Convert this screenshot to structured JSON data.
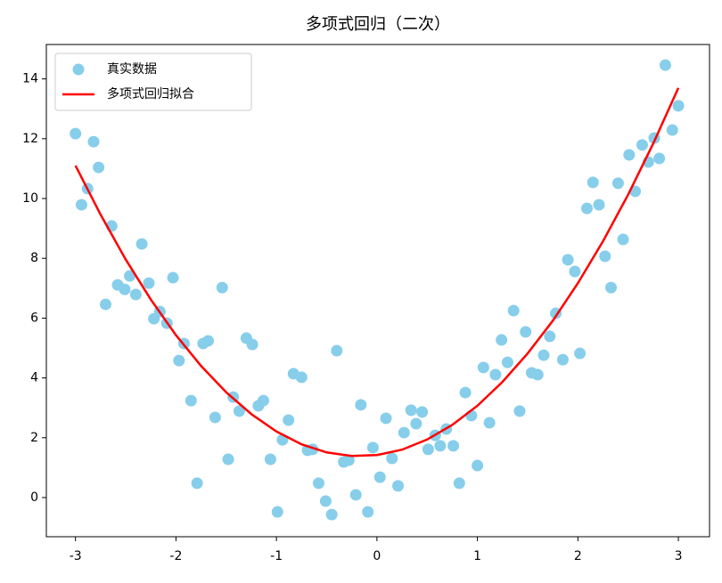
{
  "chart_data": {
    "type": "scatter",
    "title": "多项式回归（二次）",
    "xlim": [
      -3.29,
      3.31
    ],
    "ylim": [
      -1.31,
      15.15
    ],
    "xticks": [
      -3,
      -2,
      -1,
      0,
      1,
      2,
      3
    ],
    "yticks": [
      0,
      2,
      4,
      6,
      8,
      10,
      12,
      14
    ],
    "legend": "upper left",
    "series": [
      {
        "name": "真实数据",
        "type": "scatter",
        "color": "#87ceeb",
        "x": [
          -3.0,
          -2.94,
          -2.88,
          -2.82,
          -2.77,
          -2.7,
          -2.64,
          -2.58,
          -2.51,
          -2.46,
          -2.4,
          -2.34,
          -2.27,
          -2.22,
          -2.16,
          -2.09,
          -2.03,
          -1.97,
          -1.92,
          -1.85,
          -1.79,
          -1.73,
          -1.68,
          -1.61,
          -1.54,
          -1.48,
          -1.43,
          -1.37,
          -1.3,
          -1.24,
          -1.18,
          -1.13,
          -1.06,
          -0.99,
          -0.94,
          -0.88,
          -0.83,
          -0.75,
          -0.69,
          -0.64,
          -0.58,
          -0.51,
          -0.45,
          -0.4,
          -0.33,
          -0.28,
          -0.21,
          -0.16,
          -0.09,
          -0.04,
          0.03,
          0.09,
          0.15,
          0.21,
          0.27,
          0.34,
          0.39,
          0.45,
          0.51,
          0.58,
          0.63,
          0.69,
          0.76,
          0.82,
          0.88,
          0.94,
          1.0,
          1.06,
          1.12,
          1.18,
          1.24,
          1.3,
          1.36,
          1.42,
          1.48,
          1.54,
          1.6,
          1.66,
          1.72,
          1.78,
          1.85,
          1.9,
          1.97,
          2.02,
          2.09,
          2.15,
          2.21,
          2.27,
          2.33,
          2.4,
          2.45,
          2.51,
          2.57,
          2.64,
          2.7,
          2.76,
          2.81,
          2.87,
          2.94,
          3.0
        ],
        "values": [
          12.17,
          9.79,
          10.33,
          11.9,
          11.04,
          6.46,
          9.08,
          7.11,
          6.96,
          7.41,
          6.79,
          8.48,
          7.17,
          5.98,
          6.22,
          5.83,
          7.35,
          4.58,
          5.15,
          3.24,
          0.48,
          5.15,
          5.24,
          2.68,
          7.02,
          1.28,
          3.36,
          2.89,
          5.33,
          5.12,
          3.07,
          3.24,
          1.28,
          -0.48,
          1.93,
          2.59,
          4.14,
          4.02,
          1.58,
          1.61,
          0.48,
          -0.12,
          -0.57,
          4.91,
          1.19,
          1.25,
          0.09,
          3.1,
          -0.48,
          1.67,
          0.68,
          2.65,
          1.31,
          0.39,
          2.17,
          2.92,
          2.47,
          2.86,
          1.61,
          2.08,
          1.73,
          2.29,
          1.73,
          0.48,
          3.51,
          2.74,
          1.07,
          4.35,
          2.5,
          4.11,
          5.27,
          4.52,
          6.25,
          2.89,
          5.54,
          4.17,
          4.11,
          4.76,
          5.39,
          6.16,
          4.61,
          7.95,
          7.56,
          4.82,
          9.67,
          10.54,
          9.79,
          8.07,
          7.02,
          10.51,
          8.63,
          11.46,
          10.24,
          11.79,
          11.22,
          12.02,
          11.34,
          14.46,
          12.29,
          13.1
        ]
      },
      {
        "name": "多项式回归拟合",
        "type": "line",
        "color": "#ff0000",
        "x": [
          -3,
          -2.75,
          -2.5,
          -2.25,
          -2,
          -1.75,
          -1.5,
          -1.25,
          -1,
          -0.75,
          -0.5,
          -0.25,
          0,
          0.25,
          0.5,
          0.75,
          1,
          1.25,
          1.5,
          1.75,
          2,
          2.25,
          2.5,
          2.75,
          3
        ],
        "values": [
          11.1,
          9.46,
          7.96,
          6.62,
          5.43,
          4.4,
          3.52,
          2.79,
          2.21,
          1.78,
          1.51,
          1.39,
          1.42,
          1.6,
          1.94,
          2.43,
          3.07,
          3.87,
          4.82,
          5.91,
          7.17,
          8.57,
          10.13,
          11.84,
          13.7
        ]
      }
    ]
  }
}
